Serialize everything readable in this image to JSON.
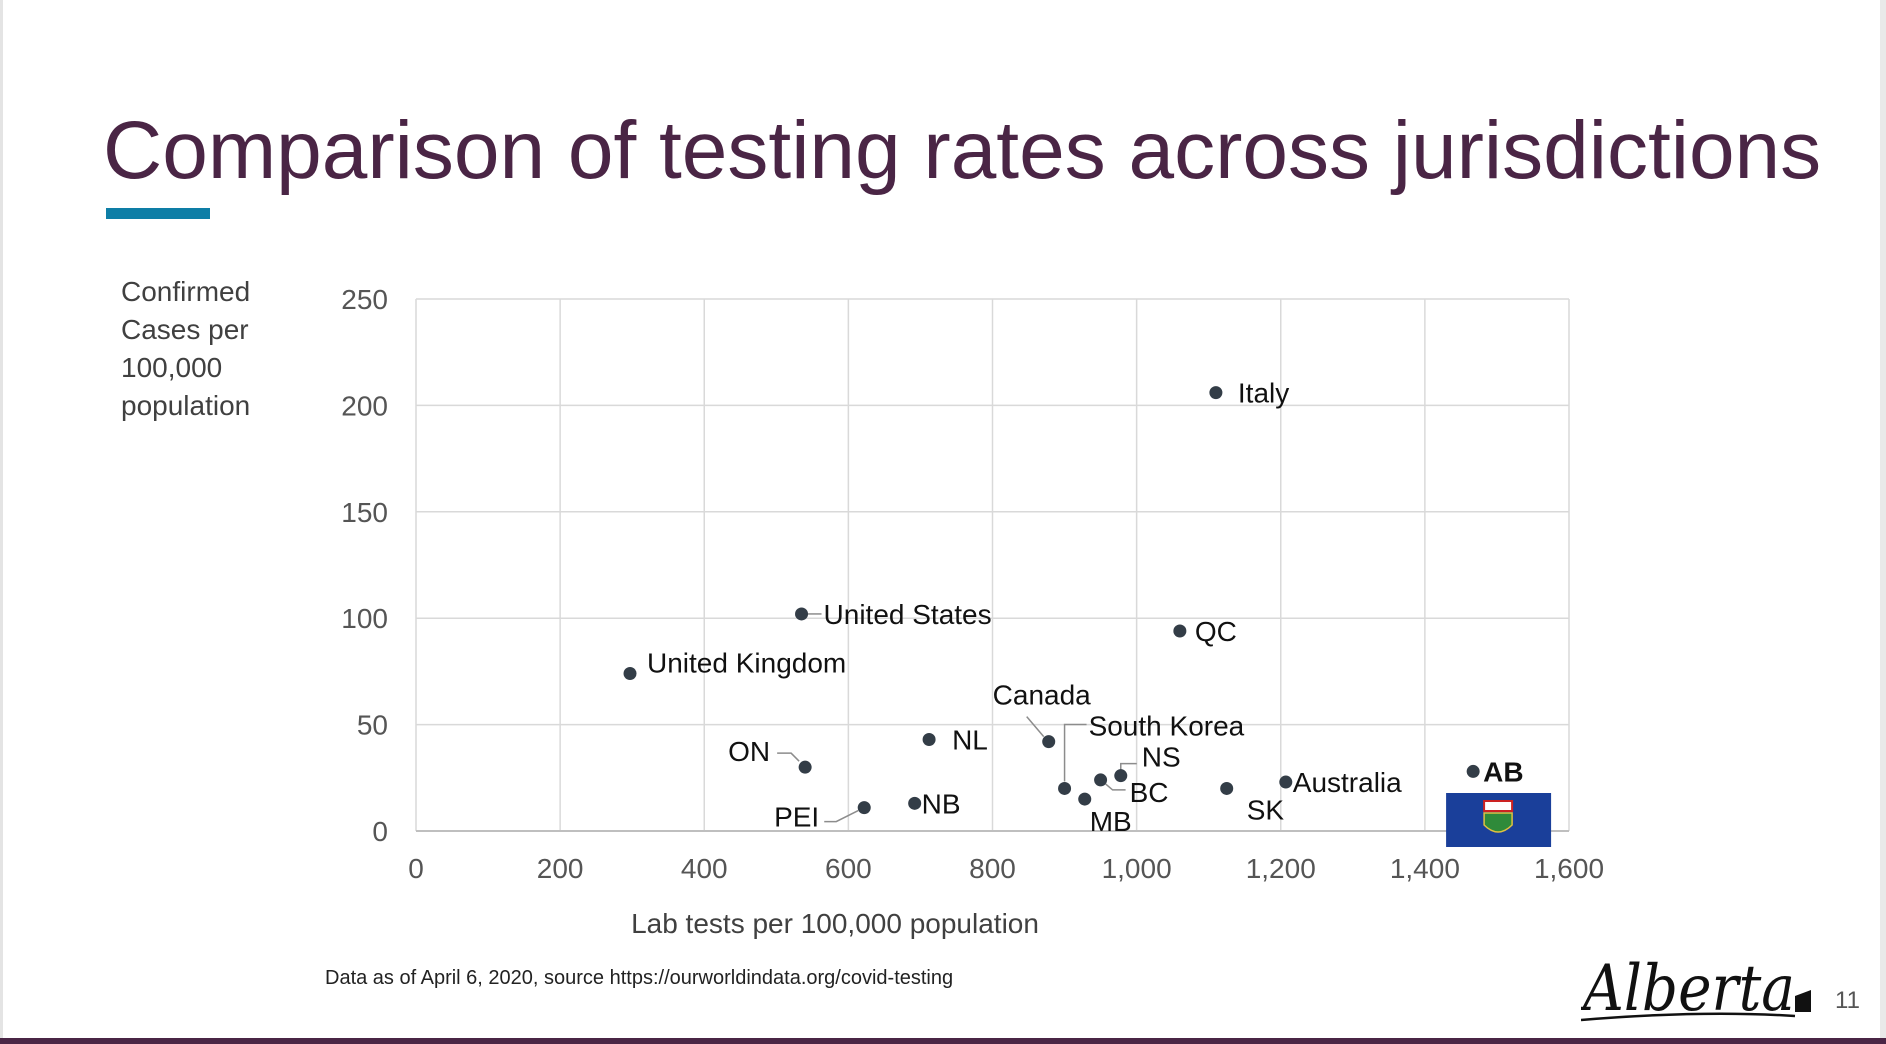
{
  "slide": {
    "title": "Comparison of testing rates across jurisdictions",
    "footnote": "Data as of April 6, 2020, source https://ourworldindata.org/covid-testing",
    "page_number": "11",
    "logo_text": "Alberta",
    "colors": {
      "title": "#4a2545",
      "accent_bar": "#0e7ea6",
      "point": "#333d47",
      "flag_blue": "#1a3f9a"
    }
  },
  "chart_data": {
    "type": "scatter",
    "title": "",
    "xlabel": "Lab tests per 100,000 population",
    "ylabel_lines": [
      "Confirmed",
      "Cases per",
      "100,000",
      "population"
    ],
    "xlim": [
      0,
      1600
    ],
    "ylim": [
      0,
      250
    ],
    "x_ticks": [
      {
        "value": 0,
        "label": "0"
      },
      {
        "value": 200,
        "label": "200"
      },
      {
        "value": 400,
        "label": "400"
      },
      {
        "value": 600,
        "label": "600"
      },
      {
        "value": 800,
        "label": "800"
      },
      {
        "value": 1000,
        "label": "1,000"
      },
      {
        "value": 1200,
        "label": "1,200"
      },
      {
        "value": 1400,
        "label": "1,400"
      },
      {
        "value": 1600,
        "label": "1,600"
      }
    ],
    "y_ticks": [
      {
        "value": 0,
        "label": "0"
      },
      {
        "value": 50,
        "label": "50"
      },
      {
        "value": 100,
        "label": "100"
      },
      {
        "value": 150,
        "label": "150"
      },
      {
        "value": 200,
        "label": "200"
      },
      {
        "value": 250,
        "label": "250"
      }
    ],
    "grid": true,
    "legend": "none",
    "points": [
      {
        "label": "Italy",
        "x": 1110,
        "y": 206
      },
      {
        "label": "United States",
        "x": 535,
        "y": 102
      },
      {
        "label": "QC",
        "x": 1060,
        "y": 94
      },
      {
        "label": "United Kingdom",
        "x": 297,
        "y": 74
      },
      {
        "label": "Canada",
        "x": 878,
        "y": 42
      },
      {
        "label": "NL",
        "x": 712,
        "y": 43
      },
      {
        "label": "South Korea",
        "x": 900,
        "y": 20
      },
      {
        "label": "NS",
        "x": 978,
        "y": 26
      },
      {
        "label": "BC",
        "x": 950,
        "y": 24
      },
      {
        "label": "ON",
        "x": 540,
        "y": 30
      },
      {
        "label": "AB",
        "x": 1467,
        "y": 28,
        "bold": true
      },
      {
        "label": "Australia",
        "x": 1207,
        "y": 23
      },
      {
        "label": "SK",
        "x": 1125,
        "y": 20
      },
      {
        "label": "MB",
        "x": 928,
        "y": 15
      },
      {
        "label": "NB",
        "x": 692,
        "y": 13
      },
      {
        "label": "PEI",
        "x": 622,
        "y": 11
      }
    ]
  }
}
